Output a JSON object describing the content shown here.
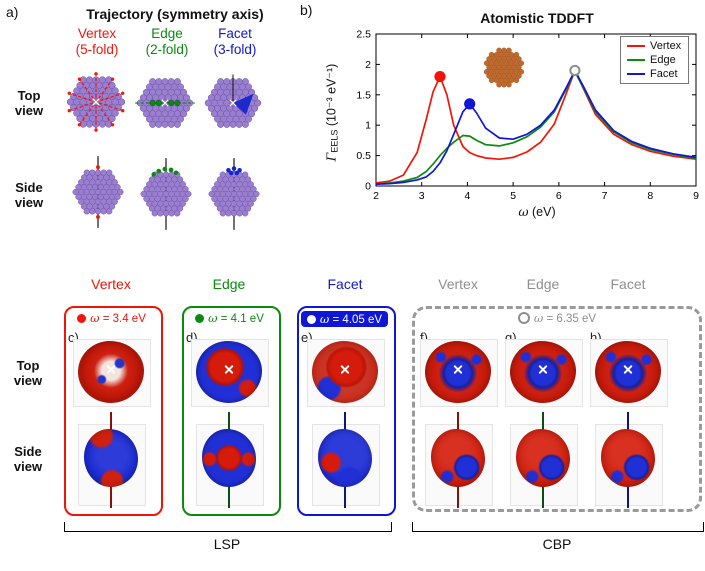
{
  "panel_a": {
    "label": "a)",
    "title": "Trajectory (symmetry axis)",
    "columns": [
      {
        "name": "Vertex",
        "fold": "(5-fold)"
      },
      {
        "name": "Edge",
        "fold": "(2-fold)"
      },
      {
        "name": "Facet",
        "fold": "(3-fold)"
      }
    ],
    "row_labels": {
      "top": "Top view",
      "side": "Side view"
    }
  },
  "panel_b": {
    "label": "b)"
  },
  "chart_data": {
    "type": "line",
    "title": "Atomistic TDDFT",
    "xlabel": "ω (eV)",
    "ylabel": "Γ_EELS (10⁻³ eV⁻¹)",
    "xlabel_parts": {
      "symbol": "ω",
      "rest": " (eV)"
    },
    "ylabel_parts": {
      "symbol": "Γ",
      "sub": "EELS",
      "rest": " (10⁻³ eV⁻¹)"
    },
    "xlim": [
      2,
      9
    ],
    "ylim": [
      0,
      2.5
    ],
    "xticks": [
      2,
      3,
      4,
      5,
      6,
      7,
      8,
      9
    ],
    "yticks": [
      0,
      0.5,
      1,
      1.5,
      2,
      2.5
    ],
    "grid": false,
    "legend_position": "top-right",
    "x": [
      2.0,
      2.3,
      2.6,
      2.9,
      3.1,
      3.25,
      3.4,
      3.55,
      3.7,
      3.9,
      4.05,
      4.2,
      4.4,
      4.7,
      5.0,
      5.3,
      5.6,
      5.9,
      6.15,
      6.35,
      6.55,
      6.8,
      7.2,
      7.6,
      8.0,
      8.5,
      9.0
    ],
    "series": [
      {
        "name": "Vertex",
        "color": "#f01508",
        "values": [
          0.05,
          0.08,
          0.18,
          0.55,
          1.1,
          1.55,
          1.8,
          1.5,
          1.0,
          0.65,
          0.55,
          0.5,
          0.46,
          0.44,
          0.47,
          0.56,
          0.72,
          1.02,
          1.5,
          1.9,
          1.58,
          1.18,
          0.85,
          0.68,
          0.57,
          0.49,
          0.44
        ]
      },
      {
        "name": "Edge",
        "color": "#0a8a0f",
        "values": [
          0.03,
          0.05,
          0.08,
          0.14,
          0.24,
          0.36,
          0.5,
          0.62,
          0.72,
          0.83,
          0.82,
          0.75,
          0.68,
          0.66,
          0.71,
          0.81,
          0.97,
          1.22,
          1.58,
          1.88,
          1.6,
          1.22,
          0.89,
          0.71,
          0.6,
          0.52,
          0.45
        ]
      },
      {
        "name": "Facet",
        "color": "#1016d8",
        "values": [
          0.03,
          0.04,
          0.06,
          0.1,
          0.15,
          0.24,
          0.38,
          0.58,
          0.85,
          1.22,
          1.35,
          1.2,
          0.95,
          0.79,
          0.77,
          0.85,
          1.0,
          1.25,
          1.6,
          1.9,
          1.62,
          1.25,
          0.91,
          0.73,
          0.62,
          0.53,
          0.47
        ]
      }
    ],
    "markers": [
      {
        "x": 3.4,
        "y": 1.8,
        "color": "#f01508",
        "filled": true
      },
      {
        "x": 4.05,
        "y": 1.35,
        "color": "#1016d8",
        "filled": true
      },
      {
        "x": 6.35,
        "y": 1.9,
        "color": "#8f8f8f",
        "filled": false
      }
    ]
  },
  "bottom": {
    "row_labels": {
      "top": "Top view",
      "side": "Side view"
    },
    "lsp_headers": [
      "Vertex",
      "Edge",
      "Facet"
    ],
    "cbp_headers": [
      "Vertex",
      "Edge",
      "Facet"
    ],
    "panels": [
      {
        "letter": "c)",
        "omega_symbol": "ω",
        "omega_text": " = 3.4 eV"
      },
      {
        "letter": "d)",
        "omega_symbol": "ω",
        "omega_text": " = 4.1 eV"
      },
      {
        "letter": "e)",
        "omega_symbol": "ω",
        "omega_text": " = 4.05 eV"
      },
      {
        "letter": "f)"
      },
      {
        "letter": "g)"
      },
      {
        "letter": "h)"
      }
    ],
    "cbp_omega": {
      "symbol": "ω",
      "text": " = 6.35 eV"
    },
    "groups": [
      "LSP",
      "CBP"
    ]
  },
  "colors": {
    "vertex": "#f01508",
    "edge": "#0a8a0f",
    "facet": "#1016d8",
    "cbp_gray": "#8f8f8f",
    "nanoparticle_purple": "#9a7ed0",
    "inset_copper": "#c0692b",
    "charge_positive_red": "#cf2010",
    "charge_negative_blue": "#1b2bd0"
  }
}
